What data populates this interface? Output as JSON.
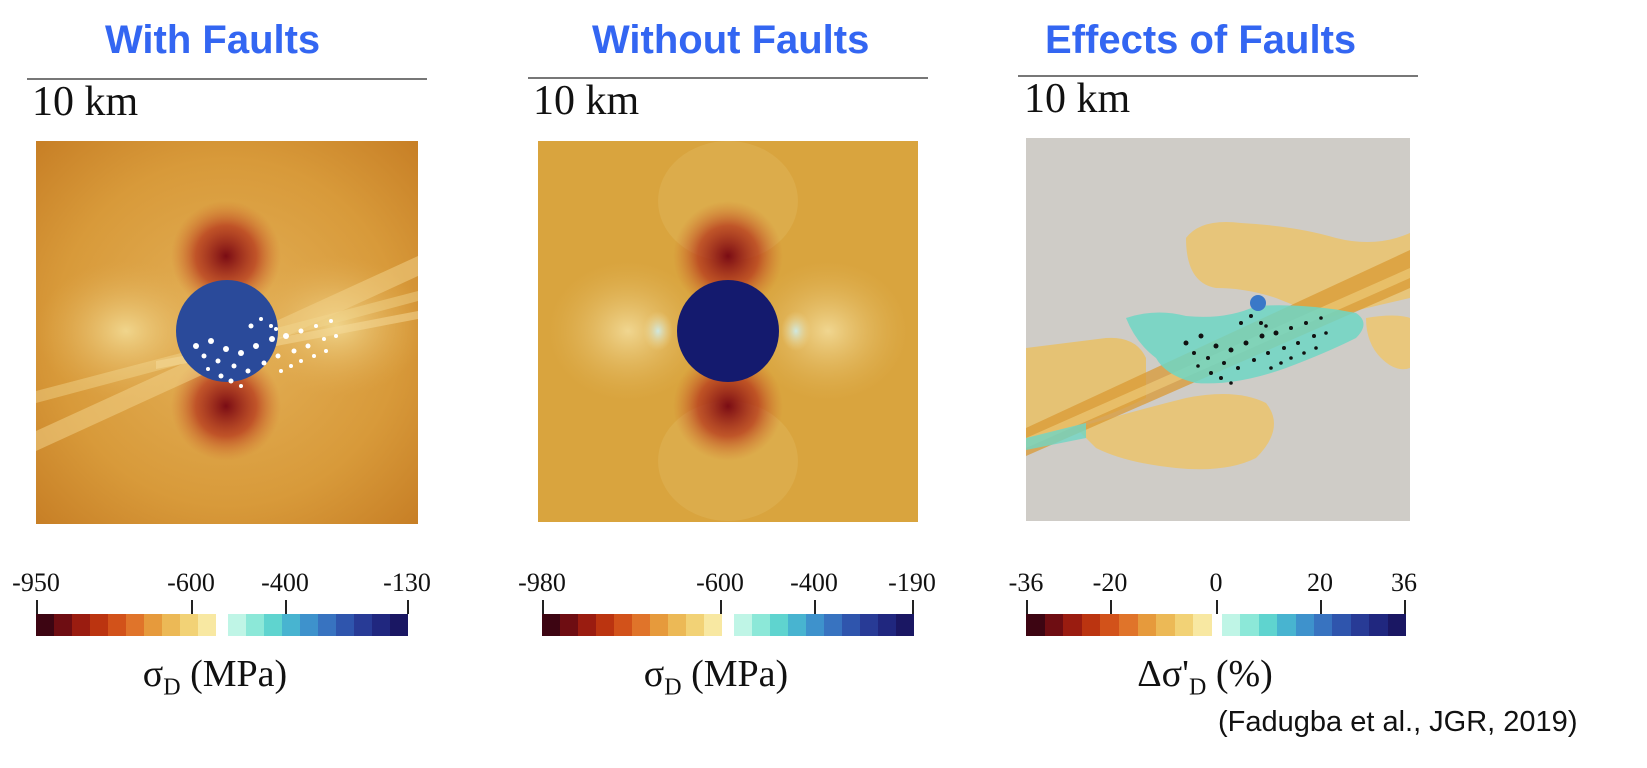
{
  "panels": [
    {
      "title": "With Faults",
      "scale_bar": "10 km",
      "ticks": [
        "-950",
        "-600",
        "-400",
        "-130"
      ],
      "colorbar_symbol": "σ",
      "colorbar_sub": "D",
      "colorbar_unit": " (MPa)"
    },
    {
      "title": "Without Faults",
      "scale_bar": "10 km",
      "ticks": [
        "-980",
        "-600",
        "-400",
        "-190"
      ],
      "colorbar_symbol": "σ",
      "colorbar_sub": "D",
      "colorbar_unit": " (MPa)"
    },
    {
      "title": "Effects of Faults",
      "scale_bar": "10 km",
      "ticks": [
        "-36",
        "-20",
        "0",
        "20",
        "36"
      ],
      "colorbar_symbol": "Δσ'",
      "colorbar_sub": "D",
      "colorbar_unit": " (%)"
    }
  ],
  "citation": "(Fadugba et al., JGR, 2019)",
  "colors": {
    "title": "#3366f2",
    "background_field": "#d9a13a",
    "reservoir_with_faults": "#2a4a9a",
    "reservoir_without_faults": "#141a6e",
    "effects_background": "#cfccc7",
    "microseismic_white": "#ffffff",
    "microseismic_black": "#111111",
    "warm_scale": [
      "#3d0512",
      "#6e0d12",
      "#9a1c10",
      "#bb3410",
      "#d2521a",
      "#e0742a",
      "#e69a3c",
      "#ecb956",
      "#f2d276",
      "#f8e8a2"
    ],
    "cool_scale": [
      "#bff5e6",
      "#8ce8d8",
      "#5fd4cf",
      "#48b4d0",
      "#3e92cc",
      "#3873c0",
      "#2f55ad",
      "#283b96",
      "#20277f",
      "#1a1763"
    ]
  }
}
